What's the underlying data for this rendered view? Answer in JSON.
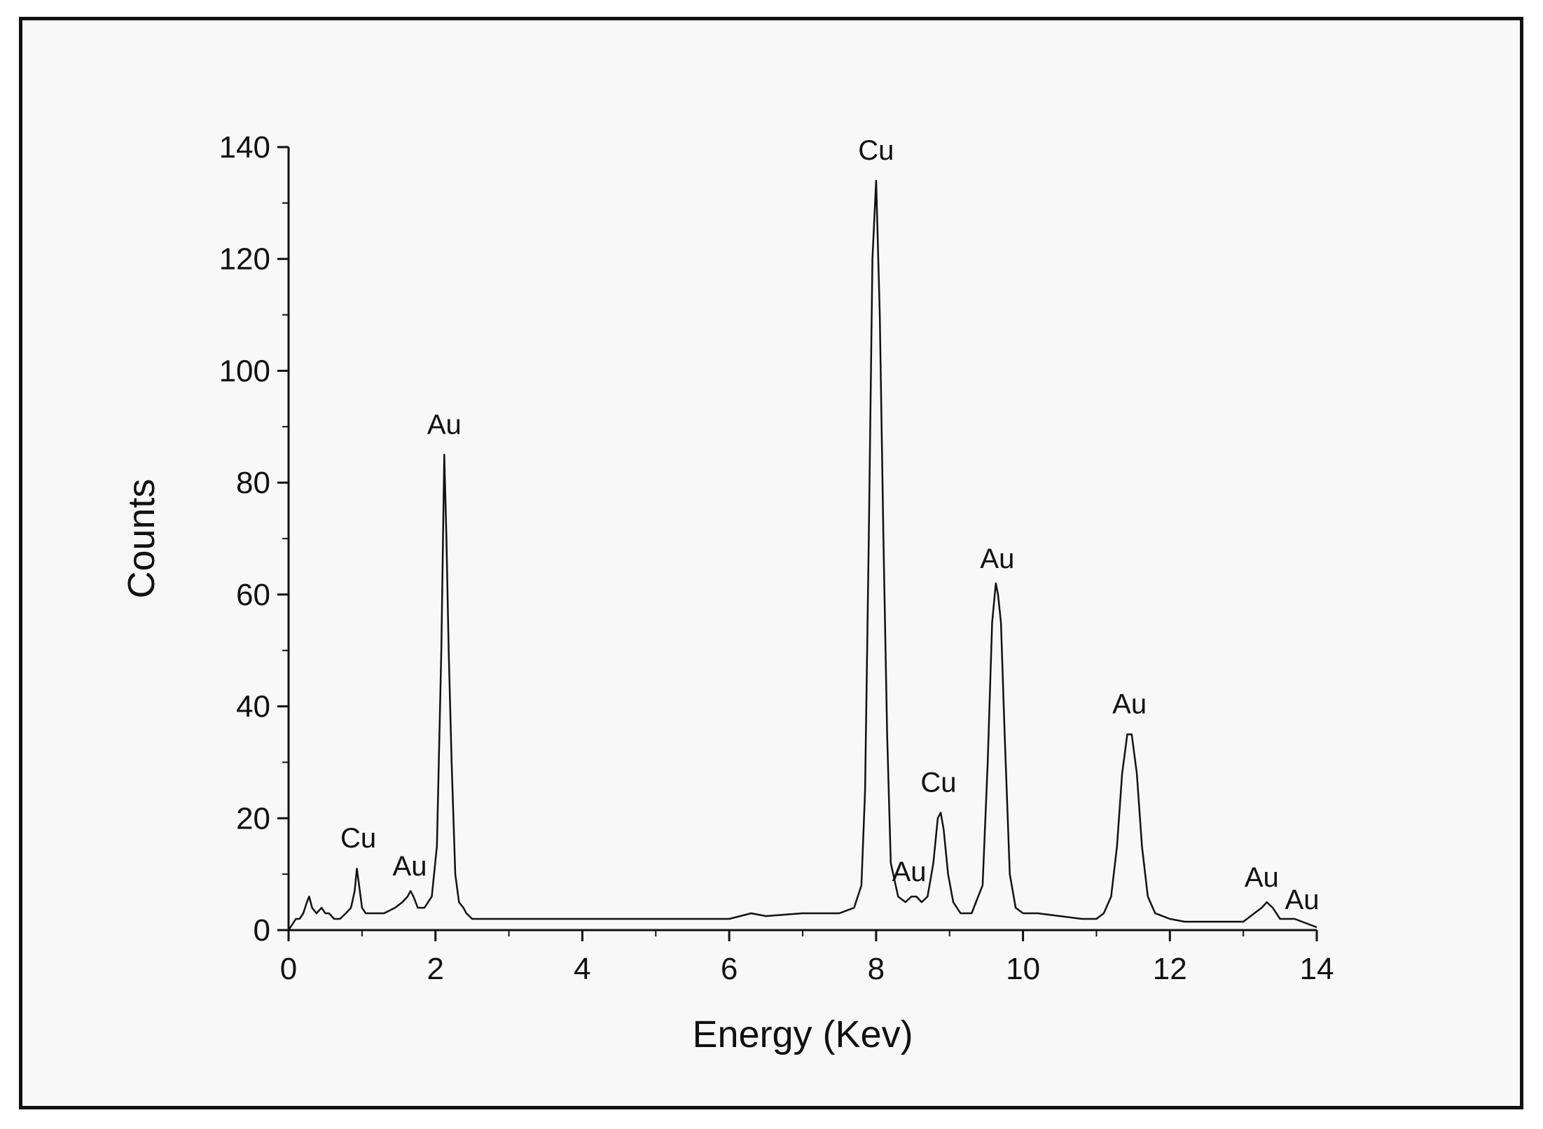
{
  "chart_data": {
    "type": "line",
    "xlabel": "Energy (Kev)",
    "ylabel": "Counts",
    "xlim": [
      0,
      14
    ],
    "ylim": [
      0,
      140
    ],
    "x_ticks": [
      0,
      2,
      4,
      6,
      8,
      10,
      12,
      14
    ],
    "y_ticks": [
      0,
      20,
      40,
      60,
      80,
      100,
      120,
      140
    ],
    "grid": false,
    "colors": {
      "line": "#111111",
      "frame": "#111111",
      "background": "#f8f8f8"
    },
    "series": [
      {
        "x": [
          0.0,
          0.05,
          0.1,
          0.15,
          0.2,
          0.25,
          0.28,
          0.32,
          0.38,
          0.45,
          0.5,
          0.55,
          0.62,
          0.7,
          0.78,
          0.85,
          0.9,
          0.93,
          0.96,
          1.0,
          1.05,
          1.15,
          1.3,
          1.45,
          1.55,
          1.62,
          1.66,
          1.7,
          1.76,
          1.85,
          1.95,
          2.02,
          2.08,
          2.12,
          2.15,
          2.18,
          2.22,
          2.27,
          2.32,
          2.38,
          2.42,
          2.5,
          2.7,
          3.0,
          3.5,
          4.0,
          5.0,
          6.0,
          6.3,
          6.5,
          7.0,
          7.5,
          7.7,
          7.8,
          7.85,
          7.9,
          7.95,
          8.0,
          8.05,
          8.1,
          8.15,
          8.2,
          8.3,
          8.4,
          8.48,
          8.55,
          8.62,
          8.7,
          8.78,
          8.84,
          8.88,
          8.92,
          8.98,
          9.05,
          9.15,
          9.3,
          9.45,
          9.52,
          9.58,
          9.63,
          9.66,
          9.7,
          9.75,
          9.82,
          9.9,
          10.0,
          10.2,
          10.5,
          10.8,
          11.0,
          11.1,
          11.2,
          11.28,
          11.35,
          11.42,
          11.48,
          11.55,
          11.62,
          11.7,
          11.8,
          12.0,
          12.2,
          12.6,
          13.0,
          13.15,
          13.25,
          13.32,
          13.4,
          13.5,
          13.6,
          13.7,
          13.8,
          13.9,
          14.0
        ],
        "y": [
          0,
          1,
          2,
          2,
          3,
          5,
          6,
          4,
          3,
          4,
          3,
          3,
          2,
          2,
          3,
          4,
          7,
          11,
          8,
          4,
          3,
          3,
          3,
          4,
          5,
          6,
          7,
          6,
          4,
          4,
          6,
          15,
          50,
          85,
          70,
          50,
          30,
          10,
          5,
          4,
          3,
          2,
          2,
          2,
          2,
          2,
          2,
          2,
          3,
          2.5,
          3,
          3,
          4,
          8,
          25,
          70,
          120,
          134,
          110,
          70,
          35,
          12,
          6,
          5,
          6,
          6,
          5,
          6,
          12,
          20,
          21,
          18,
          10,
          5,
          3,
          3,
          8,
          30,
          55,
          62,
          60,
          55,
          35,
          10,
          4,
          3,
          3,
          2.5,
          2,
          2,
          3,
          6,
          15,
          28,
          35,
          35,
          28,
          15,
          6,
          3,
          2,
          1.5,
          1.5,
          1.5,
          3,
          4,
          5,
          4,
          2,
          2,
          2,
          1.5,
          1,
          0.5
        ]
      }
    ],
    "annotations": [
      {
        "text": "Cu",
        "x": 0.95,
        "y": 14
      },
      {
        "text": "Au",
        "x": 1.65,
        "y": 9
      },
      {
        "text": "Au",
        "x": 2.12,
        "y": 88
      },
      {
        "text": "Cu",
        "x": 8.0,
        "y": 137
      },
      {
        "text": "Au",
        "x": 8.45,
        "y": 8
      },
      {
        "text": "Cu",
        "x": 8.85,
        "y": 24
      },
      {
        "text": "Au",
        "x": 9.65,
        "y": 64
      },
      {
        "text": "Au",
        "x": 11.45,
        "y": 38
      },
      {
        "text": "Au",
        "x": 13.25,
        "y": 7
      },
      {
        "text": "Au",
        "x": 13.8,
        "y": 3
      }
    ]
  }
}
